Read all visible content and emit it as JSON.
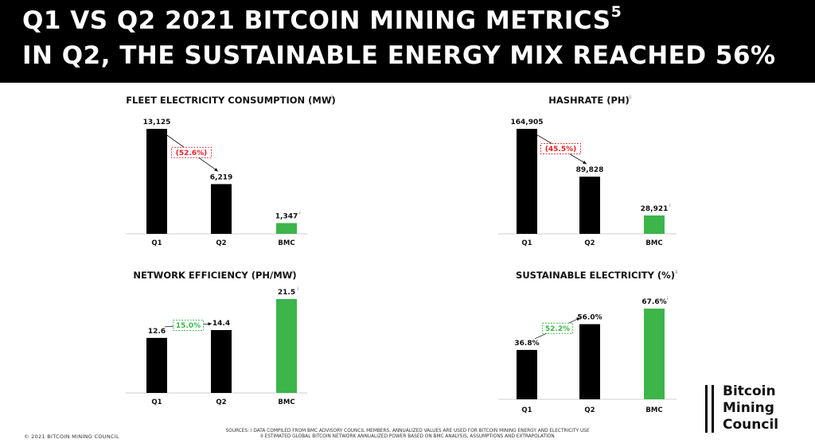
{
  "header": {
    "line1": "Q1 VS Q2 2021 BITCOIN MINING METRICS",
    "line1_sup": "5",
    "line2": "IN Q2, THE SUSTAINABLE ENERGY MIX REACHED 56%"
  },
  "colors": {
    "bar": "#000000",
    "bmc": "#3cb54a",
    "decrease": "#e8202a",
    "increase": "#3cb54a"
  },
  "chart_data": [
    {
      "type": "bar",
      "title": "FLEET ELECTRICITY CONSUMPTION (MW)",
      "title_sup": "ii",
      "categories": [
        "Q1",
        "Q2",
        "BMC"
      ],
      "values": [
        13125,
        6219,
        1347
      ],
      "labels": [
        "13,125",
        "6,219",
        "1,347"
      ],
      "label_sups": [
        "",
        "",
        "i"
      ],
      "change": {
        "text": "(52.6%)",
        "direction": "decrease"
      },
      "ylim": [
        0,
        13125
      ],
      "grid": false
    },
    {
      "type": "bar",
      "title": "HASHRATE (PH)",
      "title_sup": "ii",
      "categories": [
        "Q1",
        "Q2",
        "BMC"
      ],
      "values": [
        164905,
        89828,
        28921
      ],
      "labels": [
        "164,905",
        "89,828",
        "28,921"
      ],
      "label_sups": [
        "",
        "",
        "i"
      ],
      "change": {
        "text": "(45.5%)",
        "direction": "decrease"
      },
      "ylim": [
        0,
        164905
      ],
      "grid": false
    },
    {
      "type": "bar",
      "title": "NETWORK EFFICIENCY (PH/MW)",
      "title_sup": "ii",
      "categories": [
        "Q1",
        "Q2",
        "BMC"
      ],
      "values": [
        12.6,
        14.4,
        21.5
      ],
      "labels": [
        "12.6",
        "14.4",
        "21.5"
      ],
      "label_sups": [
        "",
        "",
        "i"
      ],
      "change": {
        "text": "15.0%",
        "direction": "increase"
      },
      "ylim": [
        0,
        21.5
      ],
      "grid": false
    },
    {
      "type": "bar",
      "title": "SUSTAINABLE ELECTRICITY (%)",
      "title_sup": "ii",
      "categories": [
        "Q1",
        "Q2",
        "BMC"
      ],
      "values": [
        36.8,
        56.0,
        67.6
      ],
      "labels": [
        "36.8%",
        "56.0%",
        "67.6%"
      ],
      "label_sups": [
        "",
        "",
        "i"
      ],
      "change": {
        "text": "52.2%",
        "direction": "increase"
      },
      "ylim": [
        0,
        67.6
      ],
      "grid": false
    }
  ],
  "footer": {
    "copyright": "© 2021 BITCOIN MINING COUNCIL",
    "sources_line1": "SOURCES: I DATA COMPILED FROM BMC ADVISORY COUNCIL MEMBERS. ANNUALIZED VALUES ARE USED FOR BITCOIN MINING ENERGY AND ELECTRICITY USE",
    "sources_line2": "II ESTIMATED GLOBAL BITCOIN NETWORK ANNUALIZED POWER BASED ON BMC ANALYSIS, ASSUMPTIONS AND EXTRAPOLATION"
  },
  "logo": {
    "line1": "Bitcoin",
    "line2": "Mining",
    "line3": "Council"
  }
}
